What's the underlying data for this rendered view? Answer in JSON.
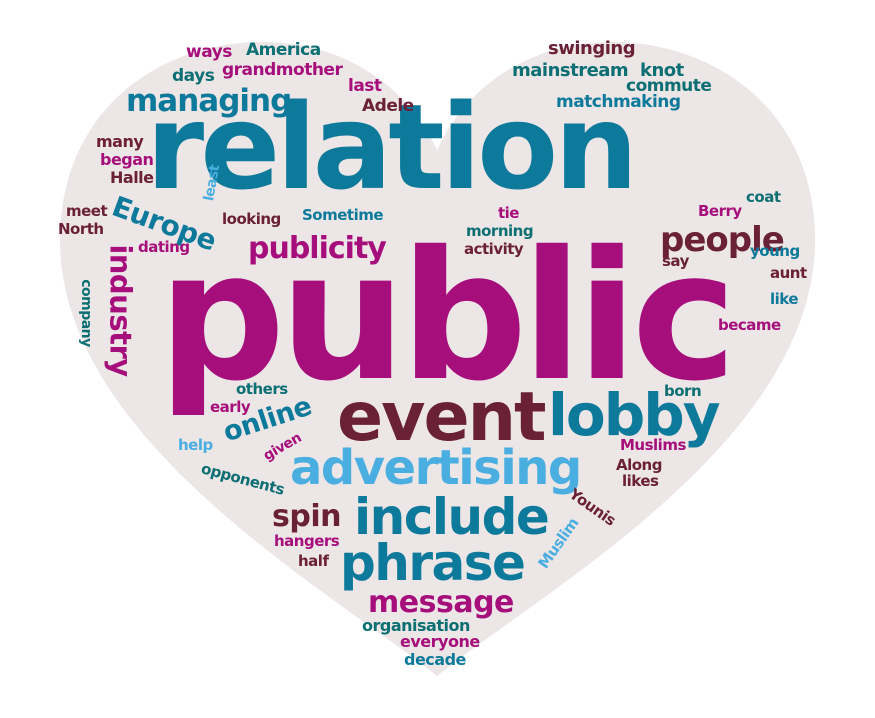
{
  "colors": {
    "background": "#ffffff",
    "heart_fill": "#ede6e6",
    "magenta": "#a60e7c",
    "teal": "#0e7a9b",
    "dark_teal": "#0c6f73",
    "maroon": "#6a2036",
    "sky_blue": "#4aaee0"
  },
  "words": {
    "public": "public",
    "relation": "relation",
    "event": "event",
    "lobby": "lobby",
    "advertising": "advertising",
    "include": "include",
    "phrase": "phrase",
    "message": "message",
    "managing": "managing",
    "publicity": "publicity",
    "people": "people",
    "industry": "industry",
    "europe": "Europe",
    "online": "online",
    "spin": "spin",
    "ways": "ways",
    "america": "America",
    "days": "days",
    "grandmother": "grandmother",
    "last": "last",
    "adele": "Adele",
    "swinging": "swinging",
    "mainstream": "mainstream",
    "knot": "knot",
    "commute": "commute",
    "matchmaking": "matchmaking",
    "many": "many",
    "began": "began",
    "halle": "Halle",
    "least": "least",
    "meet": "meet",
    "north": "North",
    "dating": "dating",
    "looking": "looking",
    "sometime": "Sometime",
    "tie": "tie",
    "morning": "morning",
    "activity": "activity",
    "coat": "coat",
    "berry": "Berry",
    "young": "young",
    "say": "say",
    "aunt": "aunt",
    "like": "like",
    "became": "became",
    "company": "company",
    "others": "others",
    "early": "early",
    "born": "born",
    "help": "help",
    "given": "given",
    "muslims": "Muslims",
    "along": "Along",
    "likes": "likes",
    "opponents": "opponents",
    "younis": "Younis",
    "hangers": "hangers",
    "half": "half",
    "muslim": "Muslim",
    "organisation": "organisation",
    "everyone": "everyone",
    "decade": "decade"
  }
}
